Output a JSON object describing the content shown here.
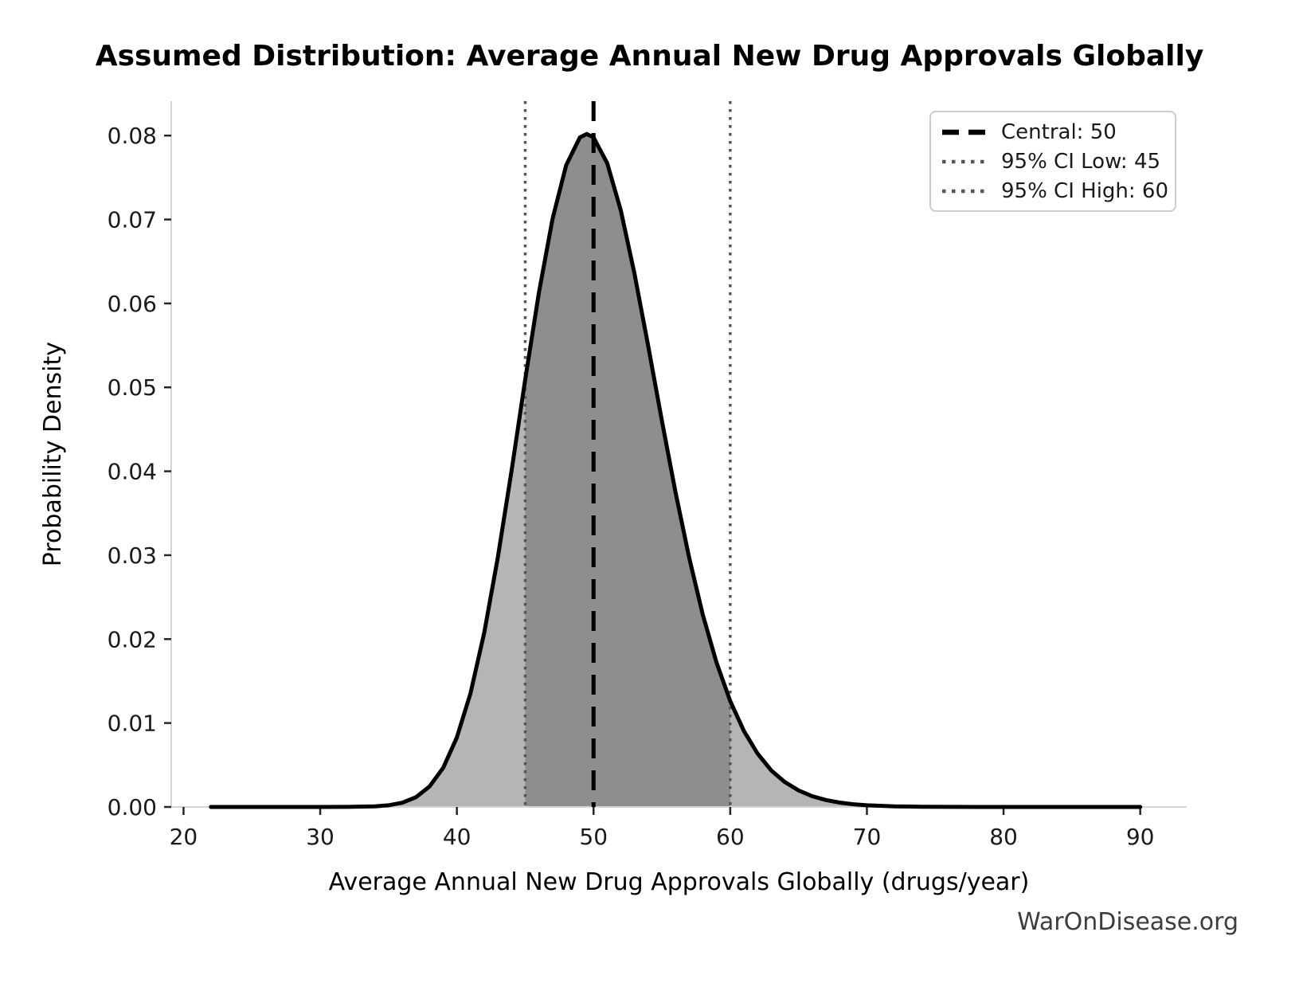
{
  "figure": {
    "watermark": "WarOnDisease.org"
  },
  "chart_data": {
    "type": "area",
    "title": "Assumed Distribution: Average Annual New Drug Approvals Globally",
    "xlabel": "Average Annual New Drug Approvals Globally (drugs/year)",
    "ylabel": "Probability Density",
    "xlim": [
      19.1,
      93.4
    ],
    "ylim": [
      0,
      0.0841
    ],
    "xticks": [
      20,
      30,
      40,
      50,
      60,
      70,
      80,
      90
    ],
    "ytick_values": [
      0.0,
      0.01,
      0.02,
      0.03,
      0.04,
      0.05,
      0.06,
      0.07,
      0.08
    ],
    "ytick_labels": [
      "0.00",
      "0.01",
      "0.02",
      "0.03",
      "0.04",
      "0.05",
      "0.06",
      "0.07",
      "0.08"
    ],
    "grid": false,
    "legend_position": "upper-right",
    "markers": {
      "central": 50,
      "ci_low": 45,
      "ci_high": 60
    },
    "legend": [
      {
        "label": "Central: 50",
        "style": "dashed",
        "color": "#000000"
      },
      {
        "label": "95% CI Low: 45",
        "style": "dotted",
        "color": "#555555"
      },
      {
        "label": "95% CI High: 60",
        "style": "dotted",
        "color": "#555555"
      }
    ],
    "density": {
      "x": [
        22,
        24,
        26,
        28,
        30,
        32,
        34,
        35,
        36,
        37,
        38,
        39,
        40,
        41,
        42,
        43,
        44,
        45,
        46,
        47,
        48,
        49,
        49.5,
        50,
        51,
        52,
        53,
        54,
        55,
        56,
        57,
        58,
        59,
        60,
        61,
        62,
        63,
        64,
        65,
        66,
        67,
        68,
        69,
        70,
        72,
        74,
        76,
        78,
        80,
        84,
        88,
        90
      ],
      "y": [
        0,
        0,
        0,
        0,
        3e-07,
        6e-06,
        7e-05,
        0.000197,
        0.000502,
        0.001158,
        0.002435,
        0.004669,
        0.008276,
        0.013567,
        0.020771,
        0.029754,
        0.040055,
        0.050907,
        0.061257,
        0.070094,
        0.076477,
        0.079779,
        0.08019,
        0.079788,
        0.076717,
        0.071043,
        0.063518,
        0.054916,
        0.046055,
        0.037485,
        0.029665,
        0.022875,
        0.017187,
        0.01261,
        0.009058,
        0.006363,
        0.004359,
        0.002963,
        0.001966,
        0.00128,
        0.000822,
        0.00052,
        0.000323,
        0.000198,
        7.2e-05,
        2.5e-05,
        8e-06,
        3e-06,
        1e-06,
        0,
        0,
        0
      ]
    },
    "ci_fill_range": [
      45,
      60
    ],
    "colors": {
      "curve": "#000000",
      "fill_outer": "#b5b5b5",
      "fill_inner": "#8e8e8e",
      "central_line": "#000000",
      "ci_line": "#555555",
      "spine": "#d4d4d4",
      "tick": "#262626",
      "tick_label": "#1a1a1a",
      "watermark": "#3d3d3d"
    }
  }
}
